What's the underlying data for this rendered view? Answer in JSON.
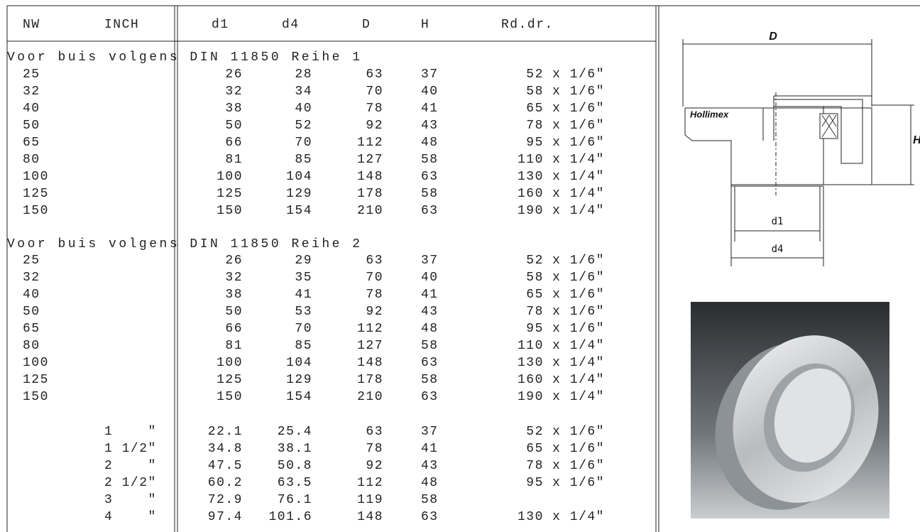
{
  "table": {
    "header": [
      "NW",
      "INCH",
      "d1",
      "d4",
      "D",
      "H",
      "Rd.dr."
    ],
    "sections": [
      {
        "title": "Voor buis volgens DIN 11850 Reihe 1",
        "rows": [
          {
            "nw": "25",
            "d1": "26",
            "d4": "28",
            "D": "63",
            "H": "37",
            "rd": "52 x 1/6\""
          },
          {
            "nw": "32",
            "d1": "32",
            "d4": "34",
            "D": "70",
            "H": "40",
            "rd": "58 x 1/6\""
          },
          {
            "nw": "40",
            "d1": "38",
            "d4": "40",
            "D": "78",
            "H": "41",
            "rd": "65 x 1/6\""
          },
          {
            "nw": "50",
            "d1": "50",
            "d4": "52",
            "D": "92",
            "H": "43",
            "rd": "78 x 1/6\""
          },
          {
            "nw": "65",
            "d1": "66",
            "d4": "70",
            "D": "112",
            "H": "48",
            "rd": "95 x 1/6\""
          },
          {
            "nw": "80",
            "d1": "81",
            "d4": "85",
            "D": "127",
            "H": "58",
            "rd": "110 x 1/4\""
          },
          {
            "nw": "100",
            "d1": "100",
            "d4": "104",
            "D": "148",
            "H": "63",
            "rd": "130 x 1/4\""
          },
          {
            "nw": "125",
            "d1": "125",
            "d4": "129",
            "D": "178",
            "H": "58",
            "rd": "160 x 1/4\""
          },
          {
            "nw": "150",
            "d1": "150",
            "d4": "154",
            "D": "210",
            "H": "63",
            "rd": "190 x 1/4\""
          }
        ]
      },
      {
        "title": "Voor buis volgens DIN 11850 Reihe 2",
        "rows": [
          {
            "nw": "25",
            "d1": "26",
            "d4": "29",
            "D": "63",
            "H": "37",
            "rd": "52 x 1/6\""
          },
          {
            "nw": "32",
            "d1": "32",
            "d4": "35",
            "D": "70",
            "H": "40",
            "rd": "58 x 1/6\""
          },
          {
            "nw": "40",
            "d1": "38",
            "d4": "41",
            "D": "78",
            "H": "41",
            "rd": "65 x 1/6\""
          },
          {
            "nw": "50",
            "d1": "50",
            "d4": "53",
            "D": "92",
            "H": "43",
            "rd": "78 x 1/6\""
          },
          {
            "nw": "65",
            "d1": "66",
            "d4": "70",
            "D": "112",
            "H": "48",
            "rd": "95 x 1/6\""
          },
          {
            "nw": "80",
            "d1": "81",
            "d4": "85",
            "D": "127",
            "H": "58",
            "rd": "110 x 1/4\""
          },
          {
            "nw": "100",
            "d1": "100",
            "d4": "104",
            "D": "148",
            "H": "63",
            "rd": "130 x 1/4\""
          },
          {
            "nw": "125",
            "d1": "125",
            "d4": "129",
            "D": "178",
            "H": "58",
            "rd": "160 x 1/4\""
          },
          {
            "nw": "150",
            "d1": "150",
            "d4": "154",
            "D": "210",
            "H": "63",
            "rd": "190 x 1/4\""
          }
        ]
      },
      {
        "rows": [
          {
            "inch": "1    \"",
            "d1": "22.1",
            "d4": "25.4",
            "D": "63",
            "H": "37",
            "rd": "52 x 1/6\""
          },
          {
            "inch": "1 1/2\"",
            "d1": "34.8",
            "d4": "38.1",
            "D": "78",
            "H": "41",
            "rd": "65 x 1/6\""
          },
          {
            "inch": "2    \"",
            "d1": "47.5",
            "d4": "50.8",
            "D": "92",
            "H": "43",
            "rd": "78 x 1/6\""
          },
          {
            "inch": "2 1/2\"",
            "d1": "60.2",
            "d4": "63.5",
            "D": "112",
            "H": "48",
            "rd": "95 x 1/6\""
          },
          {
            "inch": "3    \"",
            "d1": "72.9",
            "d4": "76.1",
            "D": "119",
            "H": "58"
          },
          {
            "inch": "4    \"",
            "d1": "97.4",
            "d4": "101.6",
            "D": "148",
            "H": "63",
            "rd": "130 x 1/4\""
          }
        ]
      }
    ]
  },
  "figure": {
    "label_D": "D",
    "label_H": "H",
    "label_d1": "d1",
    "label_d4": "d4",
    "brand": "Hollimex"
  }
}
